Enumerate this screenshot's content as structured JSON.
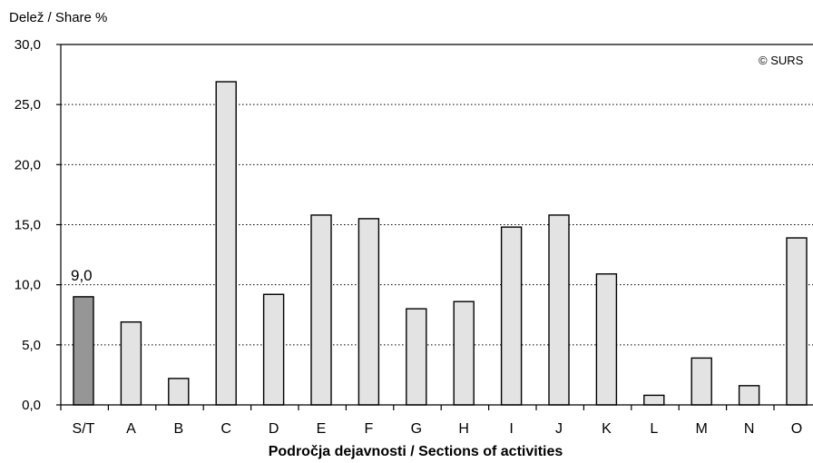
{
  "chart_data": {
    "type": "bar",
    "ylabel": "Delež / Share %",
    "xlabel": "Področja dejavnosti / Sections of activities",
    "watermark": "© SURS",
    "categories": [
      "S/T",
      "A",
      "B",
      "C",
      "D",
      "E",
      "F",
      "G",
      "H",
      "I",
      "J",
      "K",
      "L",
      "M",
      "N",
      "O"
    ],
    "values": [
      9.0,
      6.9,
      2.2,
      26.9,
      9.2,
      15.8,
      15.5,
      8.0,
      8.6,
      14.8,
      15.8,
      10.9,
      0.8,
      3.9,
      1.6,
      13.9
    ],
    "highlight_label": "9,0",
    "ylim": [
      0,
      30
    ],
    "yticks": [
      "0,0",
      "5,0",
      "10,0",
      "15,0",
      "20,0",
      "25,0",
      "30,0"
    ],
    "grid": true,
    "colors": {
      "total": "#969696",
      "section": "#e3e3e3",
      "outline": "#000000",
      "grid": "#000000"
    }
  }
}
